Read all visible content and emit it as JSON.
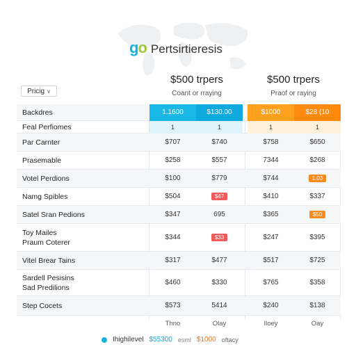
{
  "brand": {
    "logo_g": "g",
    "logo_o": "o",
    "title": "Pertsirtieresis"
  },
  "plans": [
    {
      "price": "$500 trpers",
      "sub": "Coant or rraying"
    },
    {
      "price": "$500 trpers",
      "sub": "Praof or raying"
    }
  ],
  "pricing_select": {
    "label": "Pricig",
    "chevron": "∨"
  },
  "header_row": {
    "label": "Backdres",
    "cells": [
      "1.1600",
      "$130.00",
      "$1000",
      "$28 (10"
    ]
  },
  "sub_row": {
    "label": "Feal Perfiomes",
    "cells": [
      "1",
      "1",
      "1",
      "1"
    ]
  },
  "rows": [
    {
      "label": "Par Carnter",
      "cells": [
        "$707",
        "$740",
        "$758",
        "$650"
      ]
    },
    {
      "label": "Prasemable",
      "cells": [
        "$258",
        "$557",
        "7344",
        "$268"
      ]
    },
    {
      "label": "Votel Perdions",
      "cells": [
        "$100",
        "$779",
        "$744",
        "1.03"
      ]
    },
    {
      "label": "Namg Spibles",
      "cells": [
        "$504",
        "$47",
        "$410",
        "$337"
      ]
    },
    {
      "label": "Satel Sran Pedions",
      "cells": [
        "$347",
        "695",
        "$365",
        "$50"
      ]
    },
    {
      "label": "Toy Mailes\nPraum Coterer",
      "cells": [
        "$344",
        "$33",
        "$247",
        "$395"
      ]
    },
    {
      "label": "Vitel Brear Tains",
      "cells": [
        "$317",
        "$477",
        "$517",
        "$725"
      ]
    },
    {
      "label": "Sardell Pesisins\nSad Predilions",
      "cells": [
        "$460",
        "$330",
        "$765",
        "$358"
      ]
    },
    {
      "label": "Step Cocets",
      "cells": [
        "$573",
        "5414",
        "$240",
        "$138"
      ]
    }
  ],
  "footer_labels": [
    "Thno",
    "Olay",
    "Iloey",
    "Oay"
  ],
  "legend": {
    "highlight": "Ihighilevel",
    "blue_price": "$55300",
    "blue_small": "esml",
    "orange_price": "$1000",
    "orange_small": "oftacy"
  },
  "colors": {
    "blue": "#18b9e6",
    "blue_dark": "#0ea9de",
    "orange": "#ffa11c",
    "orange_dark": "#ff8a0d",
    "red": "#e53b3b"
  }
}
